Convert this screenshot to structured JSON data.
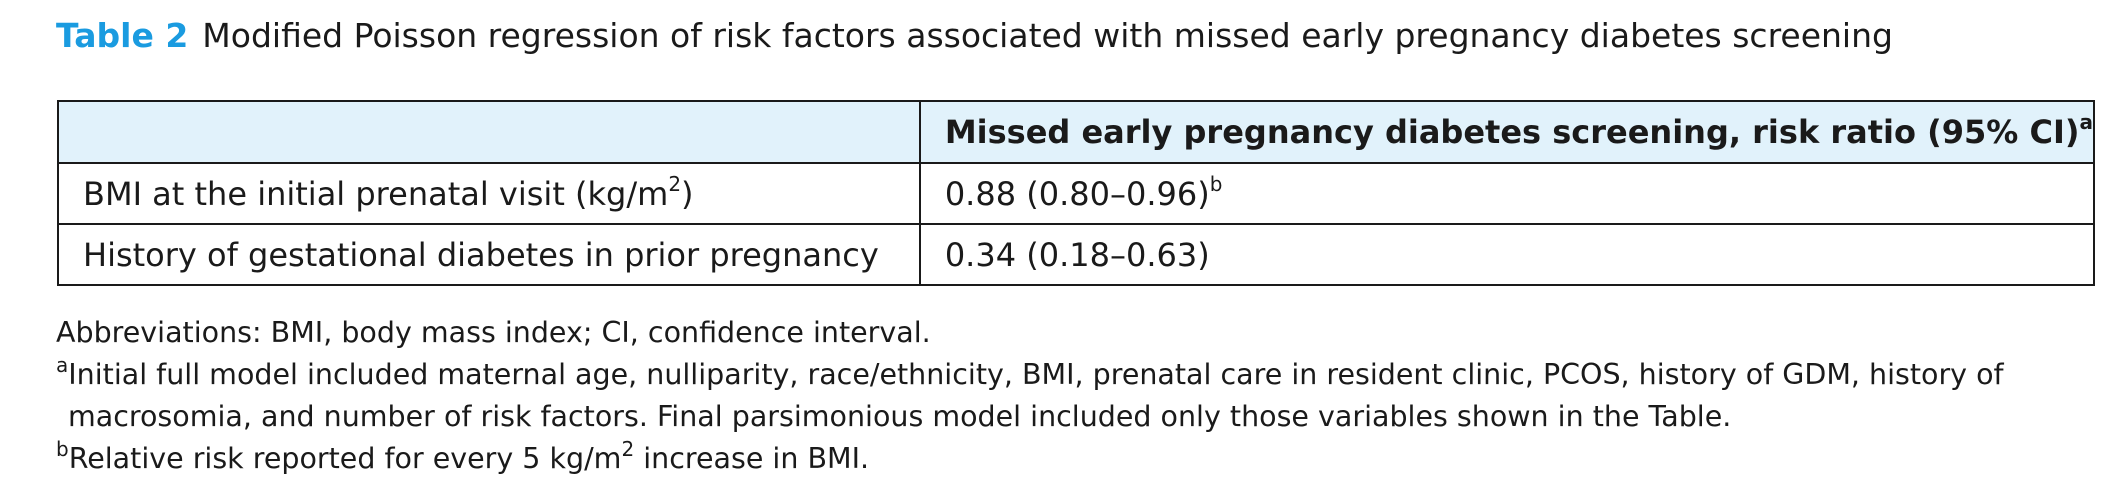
{
  "caption": {
    "label": "Table 2",
    "title": "Modified Poisson regression of risk factors associated with missed early pregnancy diabetes screening"
  },
  "table": {
    "header": {
      "col1": "",
      "col2": "Missed early pregnancy diabetes screening, risk ratio (95% CI)",
      "col2_sup": "a"
    },
    "rows": [
      {
        "factor_prefix": "BMI at the initial prenatal visit (kg/m",
        "factor_sup": "2",
        "factor_suffix": ")",
        "value": "0.88 (0.80–0.96)",
        "value_sup": "b"
      },
      {
        "factor": "History of gestational diabetes in prior pregnancy",
        "value": "0.34 (0.18–0.63)"
      }
    ]
  },
  "notes": {
    "abbreviations": "Abbreviations: BMI, body mass index; CI, confidence interval.",
    "a_marker": "a",
    "a_line1": "Initial full model included maternal age, nulliparity, race/ethnicity, BMI, prenatal care in resident clinic, PCOS, history of GDM, history of",
    "a_line2": "macrosomia, and number of risk factors. Final parsimonious model included only those variables shown in the Table.",
    "b_marker": "b",
    "b_prefix": "Relative risk reported for every 5 kg/m",
    "b_sup": "2",
    "b_suffix": " increase in BMI."
  }
}
